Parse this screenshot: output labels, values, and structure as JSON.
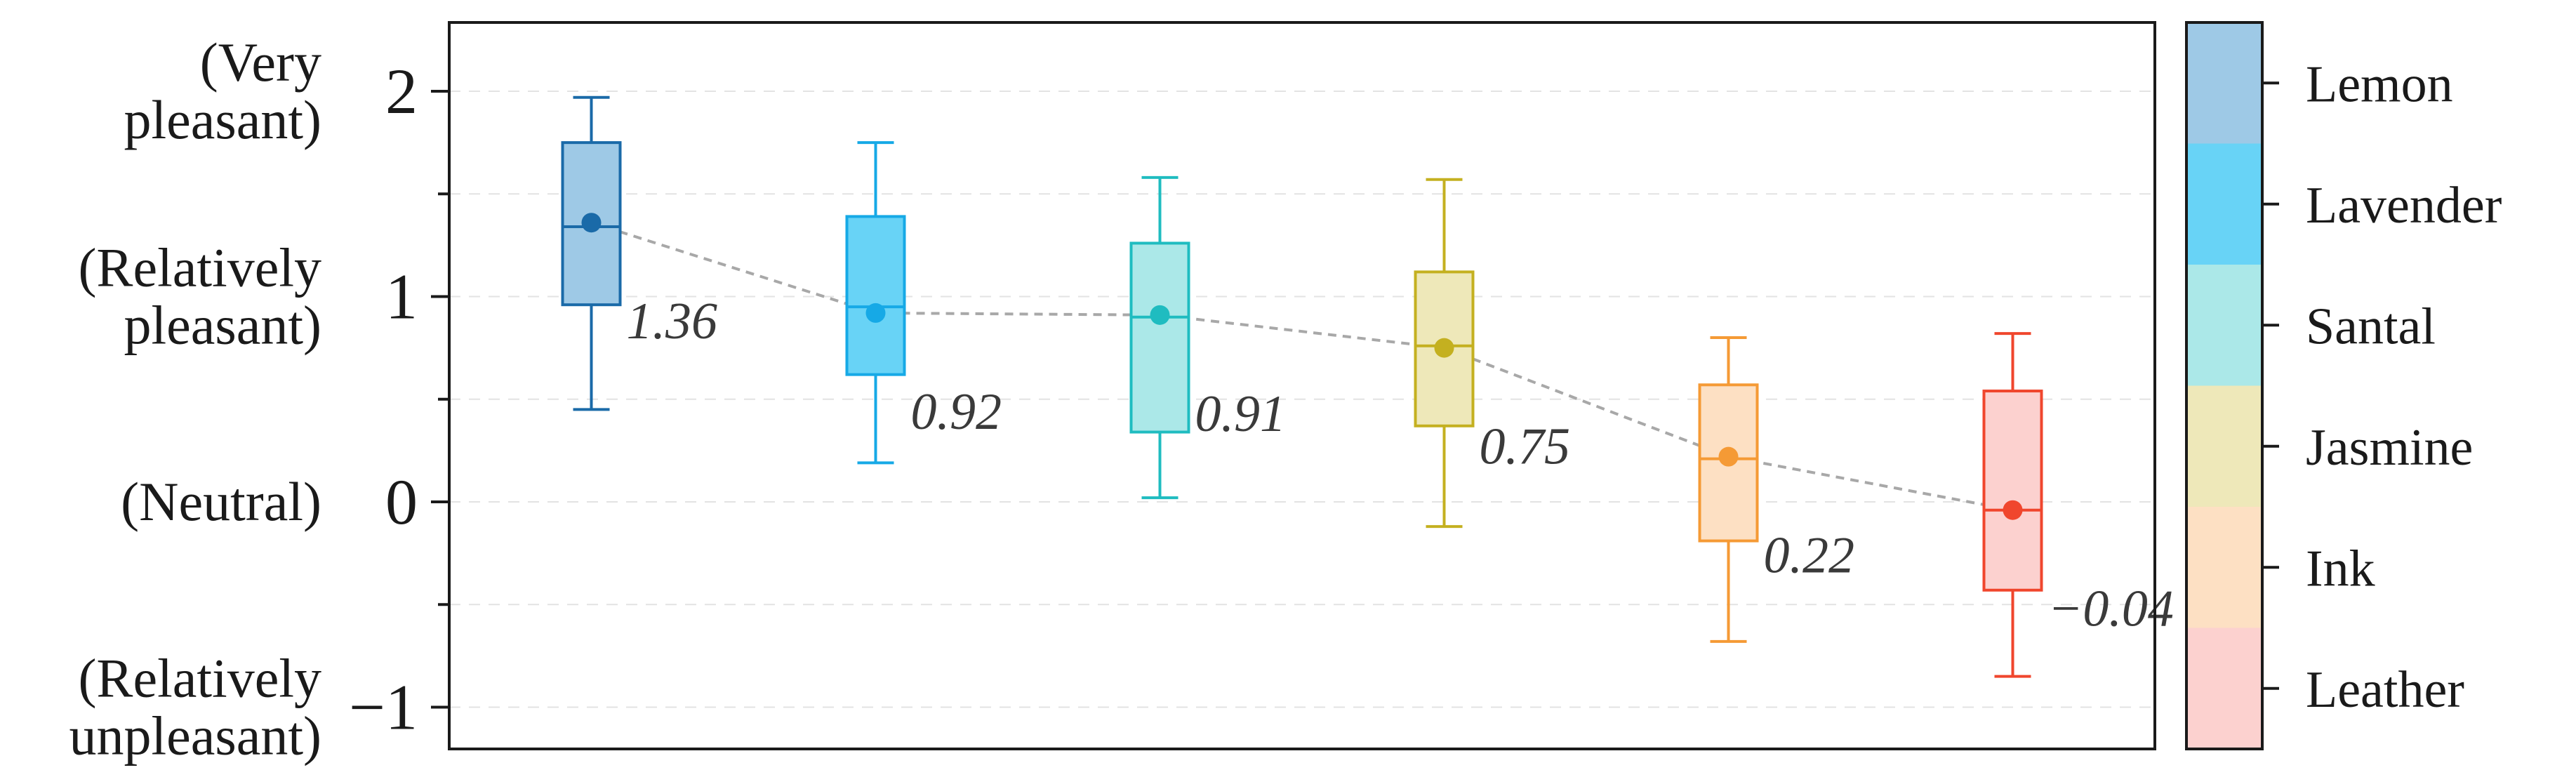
{
  "chart_data": {
    "type": "box",
    "title": "",
    "xlabel": "",
    "ylabel": "",
    "ylim": [
      -1.2,
      2.3
    ],
    "y_ticks": [
      {
        "value": 2,
        "tick": "2",
        "desc": [
          "(Very",
          "pleasant)"
        ]
      },
      {
        "value": 1,
        "tick": "1",
        "desc": [
          "(Relatively",
          "pleasant)"
        ]
      },
      {
        "value": 0,
        "tick": "0",
        "desc": [
          "(Neutral)"
        ]
      },
      {
        "value": -1,
        "tick": "−1",
        "desc": [
          "(Relatively",
          "unpleasant)"
        ]
      }
    ],
    "grid": "horizontal dashed",
    "legend_position": "right (color bar)",
    "series": [
      {
        "name": "Lemon",
        "mean": 1.36,
        "label": "1.36",
        "whisker_low": 0.45,
        "q1": 0.96,
        "median": 1.34,
        "q3": 1.75,
        "whisker_high": 1.97,
        "color": "#1a6aa8",
        "fill": "#9ec9e6"
      },
      {
        "name": "Lavender",
        "mean": 0.92,
        "label": "0.92",
        "whisker_low": 0.19,
        "q1": 0.62,
        "median": 0.95,
        "q3": 1.39,
        "whisker_high": 1.75,
        "color": "#16a9e6",
        "fill": "#68d3f6"
      },
      {
        "name": "Santal",
        "mean": 0.91,
        "label": "0.91",
        "whisker_low": 0.02,
        "q1": 0.34,
        "median": 0.9,
        "q3": 1.26,
        "whisker_high": 1.58,
        "color": "#1fbcc0",
        "fill": "#abe8e8"
      },
      {
        "name": "Jasmine",
        "mean": 0.75,
        "label": "0.75",
        "whisker_low": -0.12,
        "q1": 0.37,
        "median": 0.76,
        "q3": 1.12,
        "whisker_high": 1.57,
        "color": "#c4b020",
        "fill": "#eee8b9"
      },
      {
        "name": "Ink",
        "mean": 0.22,
        "label": "0.22",
        "whisker_low": -0.68,
        "q1": -0.19,
        "median": 0.21,
        "q3": 0.57,
        "whisker_high": 0.8,
        "color": "#f59a35",
        "fill": "#fde0c3"
      },
      {
        "name": "Leather",
        "mean": -0.04,
        "label": "−0.04",
        "whisker_low": -0.85,
        "q1": -0.43,
        "median": -0.04,
        "q3": 0.54,
        "whisker_high": 0.82,
        "color": "#f0462d",
        "fill": "#fcd1cf"
      }
    ],
    "mean_line_color": "#a8a8a8"
  }
}
